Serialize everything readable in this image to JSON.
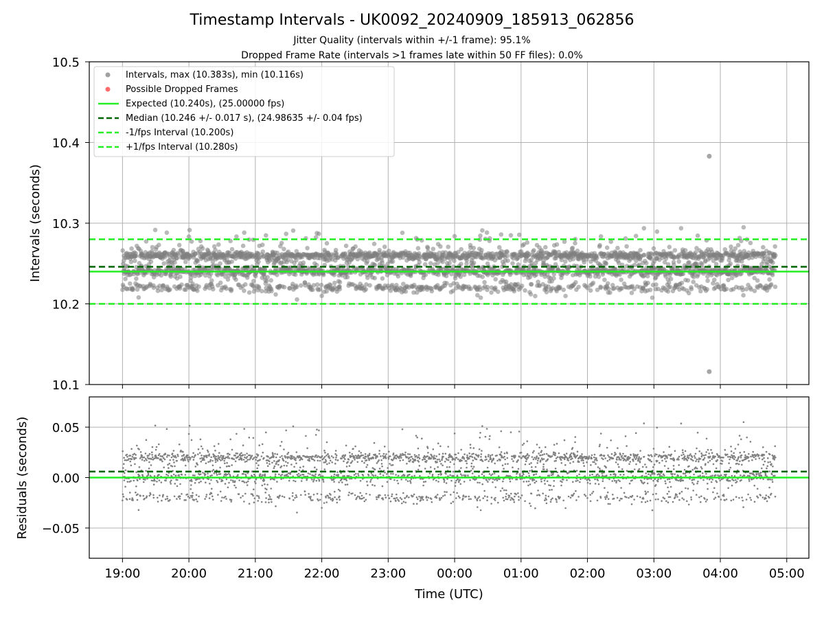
{
  "header": {
    "title": "Timestamp Intervals - UK0092_20240909_185913_062856",
    "subtitle_1": "Jitter Quality (intervals within +/-1 frame): 95.1%",
    "subtitle_2": "Dropped Frame Rate (intervals >1 frames late within 50 FF files): 0.0%"
  },
  "colors": {
    "points": "#808080",
    "dropped": "#ff4d4d",
    "expected": "#22ee22",
    "median": "#006400",
    "interval_bounds": "#22ee22",
    "grid": "#b0b0b0"
  },
  "chart_data": [
    {
      "type": "scatter",
      "panel": "top",
      "ylabel": "Intervals (seconds)",
      "xlim": [
        "18:30",
        "05:20"
      ],
      "ylim": [
        10.1,
        10.5
      ],
      "yticks": [
        10.1,
        10.2,
        10.3,
        10.4,
        10.5
      ],
      "ytick_labels": [
        "10.1",
        "10.2",
        "10.3",
        "10.4",
        "10.5"
      ],
      "grid": true,
      "legend_position": "upper-left",
      "legend": [
        {
          "kind": "point",
          "color": "#a0a0a0",
          "label": "Intervals, max (10.383s), min (10.116s)"
        },
        {
          "kind": "point",
          "color": "#ff6b6b",
          "label": "Possible Dropped Frames"
        },
        {
          "kind": "solid",
          "color": "#22ee22",
          "label": "Expected (10.240s), (25.00000 fps)"
        },
        {
          "kind": "dashed",
          "color": "#006400",
          "label": "Median (10.246 +/- 0.017 s), (24.98635 +/- 0.04 fps)"
        },
        {
          "kind": "dashed",
          "color": "#22ee22",
          "label": "-1/fps Interval (10.200s)"
        },
        {
          "kind": "dashed",
          "color": "#22ee22",
          "label": "+1/fps Interval (10.280s)"
        }
      ],
      "reference_lines": [
        {
          "name": "Expected",
          "y": 10.24,
          "style": "solid"
        },
        {
          "name": "Median",
          "y": 10.246,
          "style": "dashed"
        },
        {
          "name": "-1/fps",
          "y": 10.2,
          "style": "dashed"
        },
        {
          "name": "+1/fps",
          "y": 10.28,
          "style": "dashed"
        }
      ],
      "series": [
        {
          "name": "Intervals",
          "time_range": [
            "19:00",
            "04:50"
          ],
          "interval_s": 10.24,
          "levels": [
            10.22,
            10.24,
            10.26
          ],
          "max": 10.383,
          "max_time": "03:50",
          "min": 10.116,
          "min_time": "03:50"
        }
      ]
    },
    {
      "type": "scatter",
      "panel": "bottom",
      "xlabel": "Time (UTC)",
      "ylabel": "Residuals (seconds)",
      "xlim": [
        "18:30",
        "05:20"
      ],
      "ylim": [
        -0.08,
        0.08
      ],
      "yticks": [
        -0.05,
        0.0,
        0.05
      ],
      "ytick_labels": [
        "−0.05",
        "0.00",
        "0.05"
      ],
      "xticks": [
        "19:00",
        "20:00",
        "21:00",
        "22:00",
        "23:00",
        "00:00",
        "01:00",
        "02:00",
        "03:00",
        "04:00",
        "05:00"
      ],
      "grid": true,
      "reference_lines": [
        {
          "name": "Expected",
          "y": 0.0,
          "style": "solid"
        },
        {
          "name": "Median",
          "y": 0.006,
          "style": "dashed"
        }
      ],
      "series": [
        {
          "name": "Residuals",
          "time_range": [
            "19:00",
            "04:50"
          ],
          "levels": [
            -0.02,
            0.0,
            0.02
          ]
        }
      ]
    }
  ]
}
